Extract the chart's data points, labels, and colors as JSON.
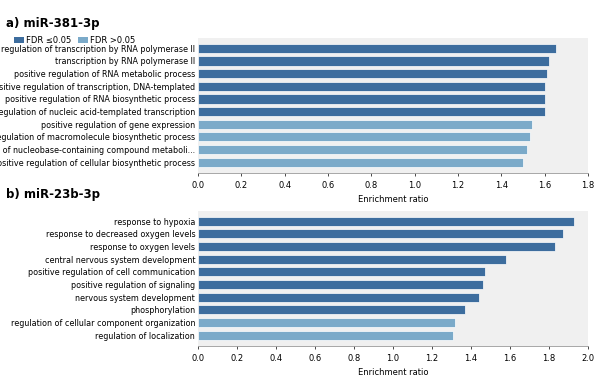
{
  "panel_a_title": "a) miR-381-3p",
  "panel_b_title": "b) miR-23b-3p",
  "legend_labels": [
    "FDR ≤0.05",
    "FDR >0.05"
  ],
  "legend_colors": [
    "#3d6d9e",
    "#7baac9"
  ],
  "panel_a_categories": [
    "regulation of transcription by RNA polymerase II",
    "transcription by RNA polymerase II",
    "positive regulation of RNA metabolic process",
    "positive regulation of transcription, DNA-templated",
    "positive regulation of RNA biosynthetic process",
    "positive regulation of nucleic acid-templated transcription",
    "positive regulation of gene expression",
    "positive regulation of macromolecule biosynthetic process",
    "positive regulation of nucleobase-containing compound metaboli...",
    "positive regulation of cellular biosynthetic process"
  ],
  "panel_a_values": [
    1.65,
    1.62,
    1.61,
    1.6,
    1.6,
    1.6,
    1.54,
    1.53,
    1.52,
    1.5
  ],
  "panel_a_colors": [
    "#3d6d9e",
    "#3d6d9e",
    "#3d6d9e",
    "#3d6d9e",
    "#3d6d9e",
    "#3d6d9e",
    "#7baac9",
    "#7baac9",
    "#7baac9",
    "#7baac9"
  ],
  "panel_a_xlim": [
    0.0,
    1.8
  ],
  "panel_a_xticks": [
    0.0,
    0.2,
    0.4,
    0.6,
    0.8,
    1.0,
    1.2,
    1.4,
    1.6,
    1.8
  ],
  "panel_b_categories": [
    "response to hypoxia",
    "response to decreased oxygen levels",
    "response to oxygen levels",
    "central nervous system development",
    "positive regulation of cell communication",
    "positive regulation of signaling",
    "nervous system development",
    "phosphorylation",
    "regulation of cellular component organization",
    "regulation of localization"
  ],
  "panel_b_values": [
    1.93,
    1.87,
    1.83,
    1.58,
    1.47,
    1.46,
    1.44,
    1.37,
    1.32,
    1.31
  ],
  "panel_b_colors": [
    "#3d6d9e",
    "#3d6d9e",
    "#3d6d9e",
    "#3d6d9e",
    "#3d6d9e",
    "#3d6d9e",
    "#3d6d9e",
    "#3d6d9e",
    "#7baac9",
    "#7baac9"
  ],
  "panel_b_xlim": [
    0.0,
    2.0
  ],
  "panel_b_xticks": [
    0.0,
    0.2,
    0.4,
    0.6,
    0.8,
    1.0,
    1.2,
    1.4,
    1.6,
    1.8,
    2.0
  ],
  "xlabel": "Enrichment ratio",
  "bar_height": 0.72,
  "bar_edgecolor": "white",
  "bg_color": "#f0f0f0",
  "title_fontsize": 8.5,
  "label_fontsize": 5.8,
  "tick_fontsize": 6.0,
  "legend_fontsize": 6.0
}
